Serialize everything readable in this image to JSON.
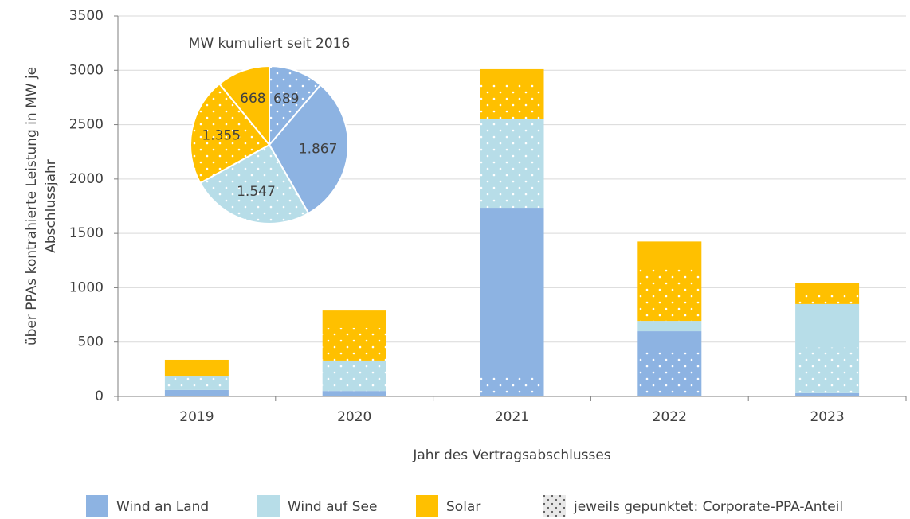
{
  "chart_data": [
    {
      "type": "bar",
      "categories": [
        "2019",
        "2020",
        "2021",
        "2022",
        "2023"
      ],
      "series": [
        {
          "name": "Wind an Land",
          "color": "#8db3e2",
          "values": [
            60,
            50,
            1735,
            600,
            30
          ],
          "corporate": [
            0,
            0,
            183,
            425,
            0
          ]
        },
        {
          "name": "Wind auf See",
          "color": "#b7dde8",
          "values": [
            130,
            280,
            820,
            95,
            820
          ],
          "corporate": [
            130,
            280,
            820,
            0,
            420
          ]
        },
        {
          "name": "Solar",
          "color": "#ffc000",
          "values": [
            147,
            460,
            455,
            730,
            195
          ],
          "corporate": [
            0,
            300,
            340,
            495,
            120
          ]
        }
      ],
      "ylim": [
        0,
        3500
      ],
      "yticks": [
        0,
        500,
        1000,
        1500,
        2000,
        2500,
        3000,
        3500
      ],
      "grid": true,
      "xlabel": "Jahr des Vertragsabschlusses",
      "ylabel": [
        "über  PPAs kontrahierte Leistung in MW je",
        "Abschlussjahr"
      ],
      "legend_note": "jeweils gepunktet: Corporate-PPA-Anteil"
    },
    {
      "type": "pie",
      "title": "MW kumuliert seit 2016",
      "values": [
        689,
        1867,
        1547,
        1355,
        668
      ],
      "value_labels": [
        "689",
        "1.867",
        "1.547",
        "1.355",
        "668"
      ],
      "colors": [
        "#8db3e2",
        "#8db3e2",
        "#b7dde8",
        "#ffc000",
        "#ffc000"
      ],
      "dotted": [
        true,
        false,
        true,
        true,
        false
      ]
    }
  ]
}
